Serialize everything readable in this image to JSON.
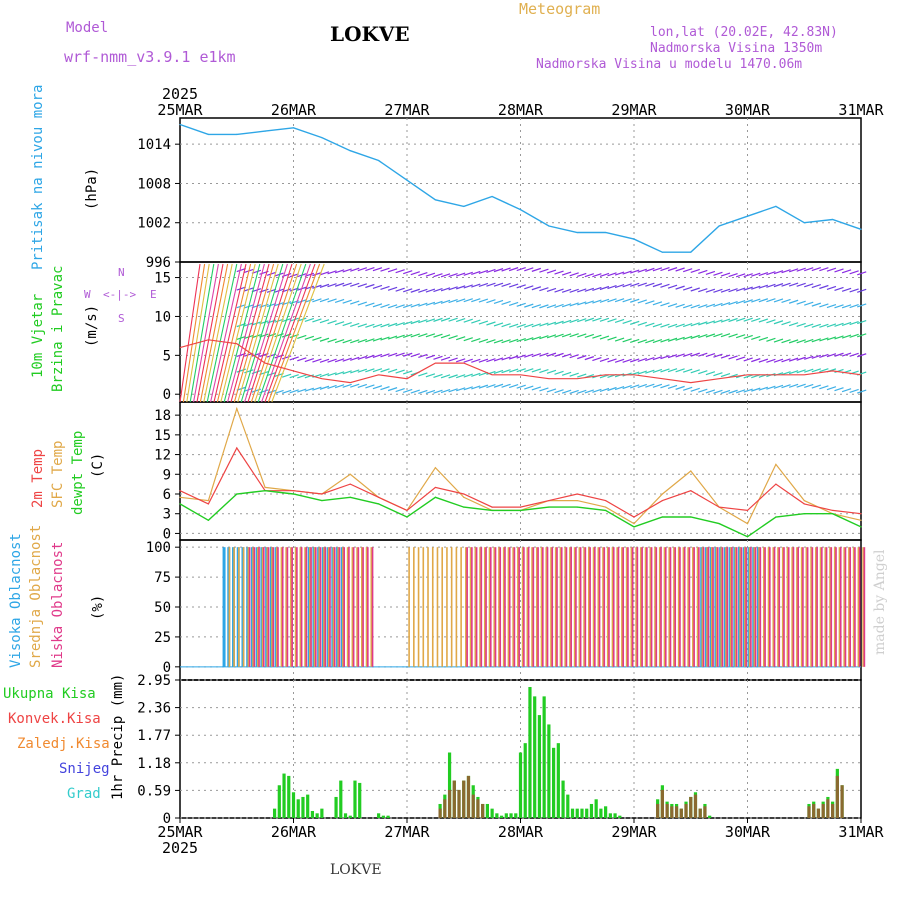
{
  "header": {
    "model_label": "Model",
    "model_name": "wrf-nmm_v3.9.1 e1km",
    "title": "LOKVE",
    "meteogram": "Meteogram",
    "lonlat": "lon,lat (20.02E, 42.83N)",
    "elev": "Nadmorska Visina 1350m",
    "elev_model": "Nadmorska Visina u modelu 1470.06m",
    "footer": "LOKVE",
    "watermark": "made by Angel"
  },
  "colors": {
    "pressure": "#2ea6e6",
    "temp2m": "#ee4444",
    "sfc": "#e0a848",
    "dewpt": "#22cc22",
    "high_cloud": "#2ea6e6",
    "mid_cloud": "#e0a848",
    "low_cloud": "#e03a8a",
    "precip_total": "#22cc22",
    "precip_conv": "#ee4444",
    "precip_frozen": "#f08a30",
    "snow": "#4444dd",
    "grad": "#33cccc",
    "purple": "#b05ad6"
  },
  "axes": {
    "time_labels": [
      "25MAR",
      "26MAR",
      "27MAR",
      "28MAR",
      "29MAR",
      "30MAR",
      "31MAR"
    ],
    "year_label": "2025"
  },
  "panels": {
    "pressure": {
      "ylabel_name": "Pritisak na nivou mora",
      "unit": "(hPa)",
      "ticks": [
        "1014",
        "1008",
        "1002",
        "996"
      ]
    },
    "wind": {
      "ylabel1": "10m Vjetar",
      "ylabel2": "Brzina i Pravac",
      "unit": "(m/s)",
      "ticks": [
        "15",
        "10",
        "5",
        "0"
      ],
      "compass": {
        "n": "N",
        "s": "S",
        "w": "W",
        "e": "E",
        "v1": "<-",
        "v2": "->"
      }
    },
    "temp": {
      "ylabel_2m": "2m Temp",
      "ylabel_sfc": "SFC Temp",
      "ylabel_dew": "dewpt Temp",
      "unit": "(C)",
      "ticks": [
        "18",
        "15",
        "12",
        "9",
        "6",
        "3",
        "0"
      ]
    },
    "cloud": {
      "ylabel_high": "Visoka Oblacnost",
      "ylabel_mid": "Srednja Oblacnost",
      "ylabel_low": "Niska Oblacnost",
      "unit": "(%)",
      "ticks": [
        "100",
        "75",
        "50",
        "25",
        "0"
      ]
    },
    "precip": {
      "legend": [
        "Ukupna Kisa",
        "Konvek.Kisa",
        "Zaledj.Kisa",
        "Snijeg",
        "Grad"
      ],
      "ylabel": "1hr Precip (mm)",
      "ticks": [
        "2.95",
        "2.36",
        "1.77",
        "1.18",
        "0.59",
        "0"
      ]
    }
  },
  "chart_data": [
    {
      "type": "line",
      "title": "",
      "ylabel": "Pritisak na nivou mora (hPa)",
      "x_hours": [
        0,
        6,
        12,
        18,
        24,
        30,
        36,
        42,
        48,
        54,
        60,
        66,
        72,
        78,
        84,
        90,
        96,
        102,
        108,
        114,
        120,
        126,
        132,
        138,
        144
      ],
      "series": [
        {
          "name": "Pritisak na nivou mora",
          "values": [
            1017,
            1015.5,
            1015.5,
            1016,
            1016.5,
            1015,
            1013,
            1011.5,
            1008.5,
            1005.5,
            1004.5,
            1006,
            1004,
            1001.5,
            1000.5,
            1000.5,
            999.5,
            997.5,
            997.5,
            1001.5,
            1003,
            1004.5,
            1002,
            1002.5,
            1001
          ]
        }
      ],
      "ylim": [
        996,
        1018
      ]
    },
    {
      "type": "line",
      "title": "",
      "ylabel": "10m Vjetar Brzina i Pravac (m/s)",
      "x_hours": [
        0,
        6,
        12,
        18,
        24,
        30,
        36,
        42,
        48,
        54,
        60,
        66,
        72,
        78,
        84,
        90,
        96,
        102,
        108,
        114,
        120,
        126,
        132,
        138,
        144
      ],
      "series": [
        {
          "name": "",
          "values": [
            6,
            7,
            6.5,
            4,
            3,
            2,
            1.5,
            2.5,
            2,
            4,
            4,
            2.5,
            2.5,
            2,
            2,
            2.5,
            2.5,
            2,
            1.5,
            2,
            2.5,
            2.5,
            2.5,
            3,
            2.5
          ]
        }
      ],
      "ylim": [
        -1,
        17
      ]
    },
    {
      "type": "line",
      "title": "",
      "ylabel": "Temp (C)",
      "x_hours": [
        0,
        6,
        12,
        18,
        24,
        30,
        36,
        42,
        48,
        54,
        60,
        66,
        72,
        78,
        84,
        90,
        96,
        102,
        108,
        114,
        120,
        126,
        132,
        138,
        144
      ],
      "series": [
        {
          "name": "2m Temp",
          "values": [
            6.5,
            4.5,
            13,
            6.5,
            6.5,
            6,
            7.5,
            5.5,
            3.5,
            7,
            6,
            4,
            4,
            5,
            6,
            5,
            2.5,
            5,
            6.5,
            4,
            3.5,
            7.5,
            4.5,
            3.5,
            3
          ]
        },
        {
          "name": "SFC Temp",
          "values": [
            5.5,
            5,
            19,
            7,
            6.5,
            6,
            9,
            5.5,
            3.5,
            10,
            5.5,
            3.5,
            3.5,
            5,
            5,
            4,
            1.5,
            6,
            9.5,
            4,
            1.5,
            10.5,
            5,
            3,
            2
          ]
        },
        {
          "name": "dewpt Temp",
          "values": [
            4.5,
            2,
            6,
            6.5,
            6,
            5,
            5.5,
            4.5,
            2.5,
            5.5,
            4,
            3.5,
            3.5,
            4,
            4,
            3.5,
            1,
            2.5,
            2.5,
            1.5,
            -0.5,
            2.5,
            3,
            3,
            1
          ]
        }
      ],
      "ylim": [
        -1,
        20
      ]
    },
    {
      "type": "bar",
      "title": "",
      "ylabel": "Oblacnost (%)",
      "ylim": [
        0,
        100
      ],
      "series": [
        {
          "name": "Visoka Oblacnost",
          "segments_hours": [
            [
              9,
              20
            ],
            [
              27,
              34
            ],
            [
              110,
              122
            ]
          ]
        },
        {
          "name": "Srednja Oblacnost",
          "segments_hours": [
            [
              10,
              40
            ],
            [
              48,
              144
            ]
          ]
        },
        {
          "name": "Niska Oblacnost",
          "segments_hours": [
            [
              14,
              40
            ],
            [
              60,
              144
            ]
          ]
        }
      ]
    },
    {
      "type": "bar",
      "title": "",
      "ylabel": "1hr Precip (mm)",
      "ylim": [
        0,
        2.95
      ],
      "bars_hours": [
        20,
        21,
        22,
        23,
        24,
        25,
        26,
        27,
        28,
        29,
        30,
        33,
        34,
        35,
        36,
        37,
        38,
        42,
        43,
        44,
        55,
        56,
        57,
        58,
        59,
        60,
        61,
        62,
        63,
        64,
        65,
        66,
        67,
        68,
        69,
        70,
        71,
        72,
        73,
        74,
        75,
        76,
        77,
        78,
        79,
        80,
        81,
        82,
        83,
        84,
        85,
        86,
        87,
        88,
        89,
        90,
        91,
        92,
        93,
        101,
        102,
        103,
        104,
        105,
        106,
        107,
        108,
        109,
        110,
        111,
        112,
        133,
        134,
        135,
        136,
        137,
        138,
        139,
        140
      ],
      "series": [
        {
          "name": "Ukupna Kisa",
          "values": [
            0.2,
            0.7,
            0.95,
            0.9,
            0.55,
            0.4,
            0.45,
            0.5,
            0.15,
            0.1,
            0.2,
            0.45,
            0.8,
            0.1,
            0.05,
            0.8,
            0.75,
            0.1,
            0.05,
            0.05,
            0.3,
            0.5,
            1.4,
            0.8,
            0.6,
            0.8,
            0.9,
            0.7,
            0.45,
            0.3,
            0.3,
            0.2,
            0.1,
            0.05,
            0.1,
            0.1,
            0.1,
            1.4,
            1.6,
            2.8,
            2.6,
            2.2,
            2.6,
            2.0,
            1.5,
            1.6,
            0.8,
            0.5,
            0.2,
            0.2,
            0.2,
            0.2,
            0.3,
            0.4,
            0.2,
            0.25,
            0.1,
            0.1,
            0.05,
            0.4,
            0.7,
            0.35,
            0.3,
            0.3,
            0.2,
            0.35,
            0.45,
            0.55,
            0.2,
            0.3,
            0.05,
            0.3,
            0.35,
            0.2,
            0.35,
            0.45,
            0.35,
            1.05,
            0.7
          ]
        },
        {
          "name": "Konvek.Kisa",
          "values": [
            0,
            0,
            0,
            0,
            0,
            0,
            0,
            0,
            0,
            0,
            0,
            0,
            0,
            0,
            0,
            0,
            0,
            0,
            0,
            0,
            0.2,
            0.4,
            0.6,
            0.8,
            0.6,
            0.8,
            0.9,
            0.5,
            0.4,
            0.3,
            0,
            0,
            0,
            0,
            0,
            0,
            0,
            0,
            0,
            0,
            0,
            0,
            0,
            0,
            0,
            0,
            0,
            0,
            0,
            0,
            0,
            0,
            0,
            0,
            0,
            0,
            0,
            0,
            0,
            0.3,
            0.6,
            0.3,
            0.25,
            0.25,
            0.2,
            0.3,
            0.45,
            0.5,
            0.2,
            0.25,
            0,
            0.25,
            0.3,
            0.2,
            0.3,
            0.4,
            0.3,
            0.9,
            0.7
          ]
        }
      ]
    }
  ]
}
